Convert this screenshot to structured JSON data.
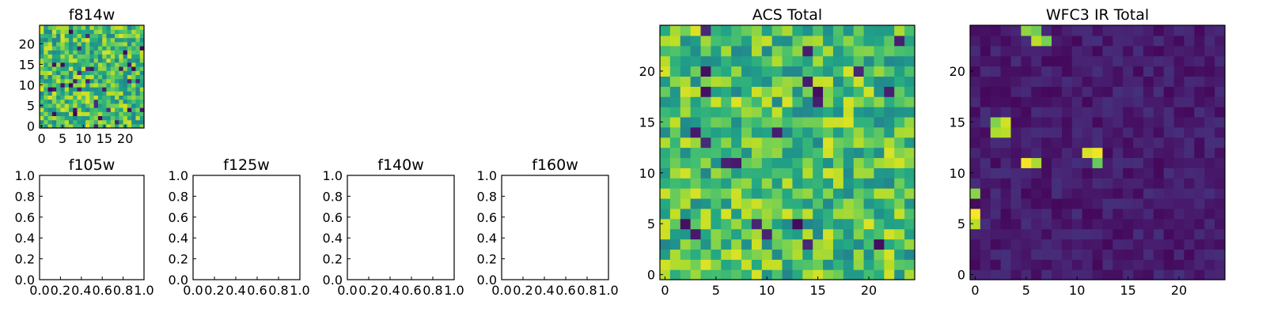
{
  "chart_data": [
    {
      "type": "heatmap",
      "title": "f814w",
      "x_ticks": [
        "0",
        "5",
        "10",
        "15",
        "20"
      ],
      "y_ticks": [
        "0",
        "5",
        "10",
        "15",
        "20"
      ],
      "grid_size": 25,
      "seed": 814,
      "colormap": "viridis",
      "notes": "noise image"
    },
    {
      "type": "empty",
      "title": "f105w",
      "x_ticks": [
        "0.0",
        "0.2",
        "0.4",
        "0.6",
        "0.8",
        "1.0"
      ],
      "y_ticks": [
        "0.0",
        "0.2",
        "0.4",
        "0.6",
        "0.8",
        "1.0"
      ]
    },
    {
      "type": "empty",
      "title": "f125w",
      "x_ticks": [
        "0.0",
        "0.2",
        "0.4",
        "0.6",
        "0.8",
        "1.0"
      ],
      "y_ticks": [
        "0.0",
        "0.2",
        "0.4",
        "0.6",
        "0.8",
        "1.0"
      ]
    },
    {
      "type": "empty",
      "title": "f140w",
      "x_ticks": [
        "0.0",
        "0.2",
        "0.4",
        "0.6",
        "0.8",
        "1.0"
      ],
      "y_ticks": [
        "0.0",
        "0.2",
        "0.4",
        "0.6",
        "0.8",
        "1.0"
      ]
    },
    {
      "type": "empty",
      "title": "f160w",
      "x_ticks": [
        "0.0",
        "0.2",
        "0.4",
        "0.6",
        "0.8",
        "1.0"
      ],
      "y_ticks": [
        "0.0",
        "0.2",
        "0.4",
        "0.6",
        "0.8",
        "1.0"
      ]
    },
    {
      "type": "heatmap",
      "title": "ACS Total",
      "x_ticks": [
        "0",
        "5",
        "10",
        "15",
        "20"
      ],
      "y_ticks": [
        "0",
        "5",
        "10",
        "15",
        "20"
      ],
      "grid_size": 25,
      "seed": 4242,
      "colormap": "viridis"
    },
    {
      "type": "heatmap",
      "title": "WFC3 IR Total",
      "x_ticks": [
        "0",
        "5",
        "10",
        "15",
        "20"
      ],
      "y_ticks": [
        "0",
        "5",
        "10",
        "15",
        "20"
      ],
      "grid_size": 25,
      "seed": 9001,
      "colormap": "viridis",
      "bright_cells": [
        [
          2,
          15
        ],
        [
          3,
          15
        ],
        [
          2,
          14
        ],
        [
          3,
          14
        ],
        [
          5,
          11
        ],
        [
          6,
          11
        ],
        [
          11,
          12
        ],
        [
          12,
          12
        ],
        [
          12,
          11
        ],
        [
          0,
          5
        ],
        [
          0,
          6
        ],
        [
          0,
          8
        ],
        [
          5,
          24
        ],
        [
          6,
          24
        ],
        [
          6,
          23
        ],
        [
          7,
          23
        ]
      ]
    }
  ]
}
